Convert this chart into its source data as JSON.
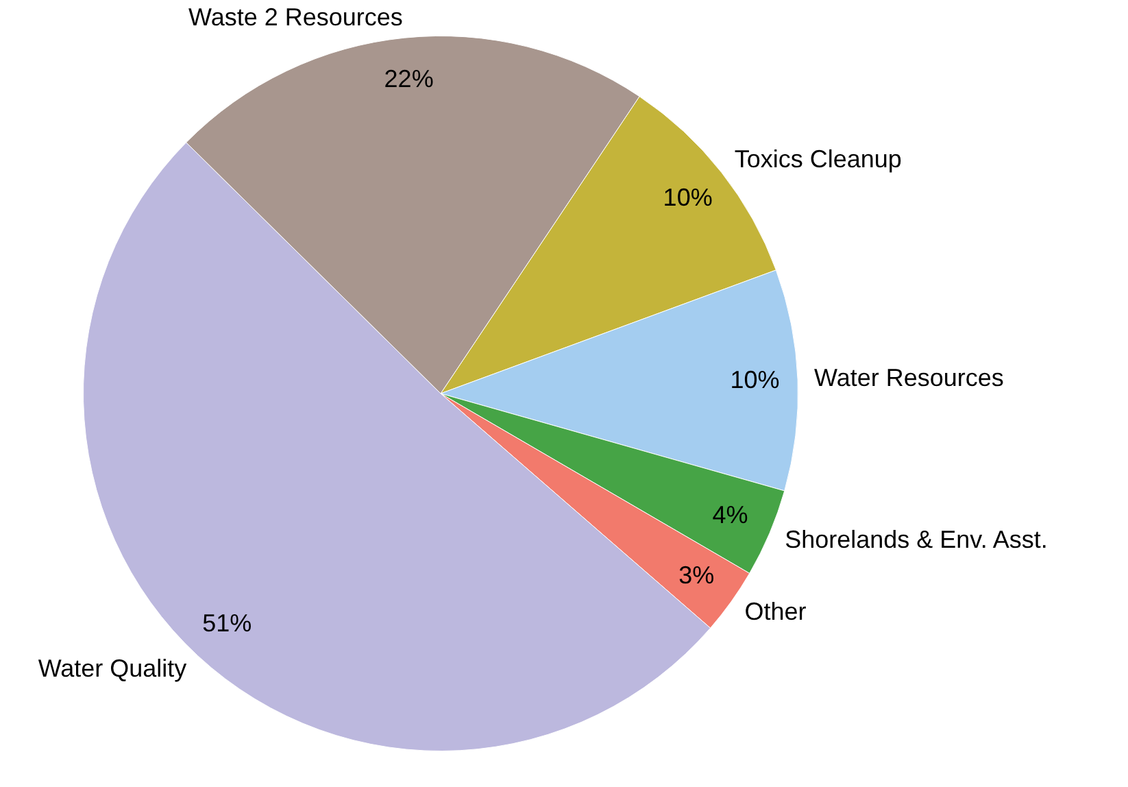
{
  "chart_data": {
    "type": "pie",
    "categories": [
      "Toxics Cleanup",
      "Water Resources",
      "Shorelands & Env. Asst.",
      "Other",
      "Water Quality",
      "Waste 2 Resources"
    ],
    "values": [
      10,
      10,
      4,
      3,
      51,
      22
    ],
    "colors": [
      "#c4b43a",
      "#a4cdf0",
      "#46a446",
      "#f27a6c",
      "#bcb8de",
      "#a8968e"
    ],
    "value_labels": [
      "10%",
      "10%",
      "4%",
      "3%",
      "51%",
      "22%"
    ],
    "legend": false
  }
}
